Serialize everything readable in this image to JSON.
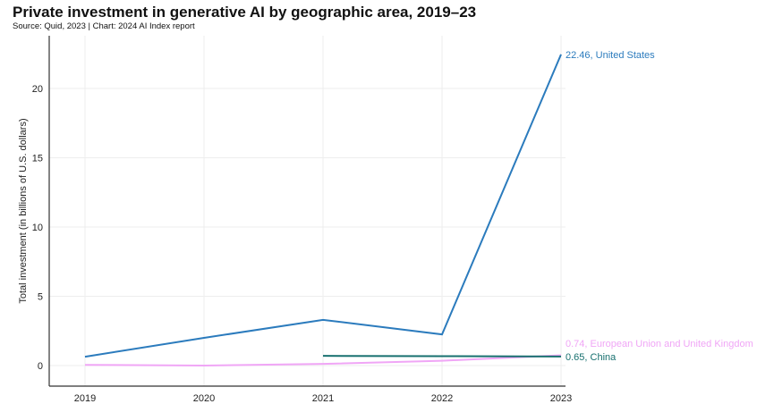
{
  "chart_data": {
    "type": "line",
    "title": "Private investment in generative AI by geographic area, 2019–23",
    "subtitle": "Source: Quid, 2023 | Chart: 2024 AI Index report",
    "xlabel": "",
    "ylabel": "Total investment (in billions of U.S. dollars)",
    "x": [
      2019,
      2020,
      2021,
      2022,
      2023
    ],
    "x_tick_labels": [
      "2019",
      "2020",
      "2021",
      "2022",
      "2023"
    ],
    "y_ticks": [
      0,
      5,
      10,
      15,
      20
    ],
    "y_tick_labels": [
      "0",
      "5",
      "10",
      "15",
      "20"
    ],
    "ylim": [
      -1.5,
      23.8
    ],
    "grid": true,
    "series": [
      {
        "name": "United States",
        "color": "#2b7bbd",
        "values": [
          0.64,
          2.0,
          3.3,
          2.25,
          22.46
        ],
        "end_label": "22.46, United States"
      },
      {
        "name": "European Union and United Kingdom",
        "color": "#f0a6f6",
        "values": [
          0.05,
          0.0,
          0.12,
          0.35,
          0.74
        ],
        "end_label": "0.74, European Union and United Kingdom"
      },
      {
        "name": "China",
        "color": "#17706f",
        "values": [
          null,
          null,
          0.7,
          0.68,
          0.65
        ],
        "end_label": "0.65, China"
      }
    ]
  }
}
